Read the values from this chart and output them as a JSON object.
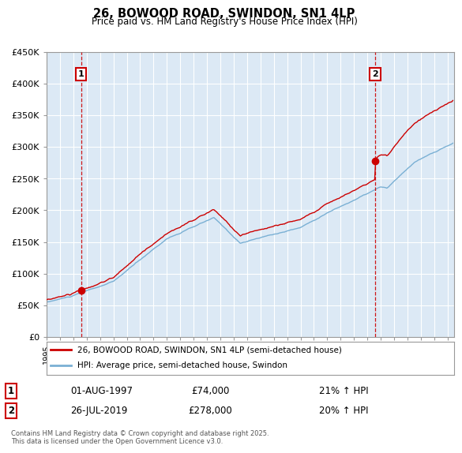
{
  "title": "26, BOWOOD ROAD, SWINDON, SN1 4LP",
  "subtitle": "Price paid vs. HM Land Registry's House Price Index (HPI)",
  "ylim": [
    0,
    450000
  ],
  "yticks": [
    0,
    50000,
    100000,
    150000,
    200000,
    250000,
    300000,
    350000,
    400000,
    450000
  ],
  "ytick_labels": [
    "£0",
    "£50K",
    "£100K",
    "£150K",
    "£200K",
    "£250K",
    "£300K",
    "£350K",
    "£400K",
    "£450K"
  ],
  "xlim_start": 1995.0,
  "xlim_end": 2025.5,
  "sale1_x": 1997.583,
  "sale1_y": 74000,
  "sale2_x": 2019.583,
  "sale2_y": 278000,
  "sale1_label": "1",
  "sale2_label": "2",
  "line_color_red": "#cc0000",
  "line_color_blue": "#7ab0d4",
  "vline_color": "#cc0000",
  "background_color": "#ffffff",
  "plot_bg_color": "#dce9f5",
  "grid_color": "#ffffff",
  "legend_line1": "26, BOWOOD ROAD, SWINDON, SN1 4LP (semi-detached house)",
  "legend_line2": "HPI: Average price, semi-detached house, Swindon",
  "annotation1_date": "01-AUG-1997",
  "annotation1_price": "£74,000",
  "annotation1_hpi": "21% ↑ HPI",
  "annotation2_date": "26-JUL-2019",
  "annotation2_price": "£278,000",
  "annotation2_hpi": "20% ↑ HPI",
  "footer": "Contains HM Land Registry data © Crown copyright and database right 2025.\nThis data is licensed under the Open Government Licence v3.0.",
  "hpi_scale_factor": 1.21,
  "hpi_scale_factor2": 1.2
}
